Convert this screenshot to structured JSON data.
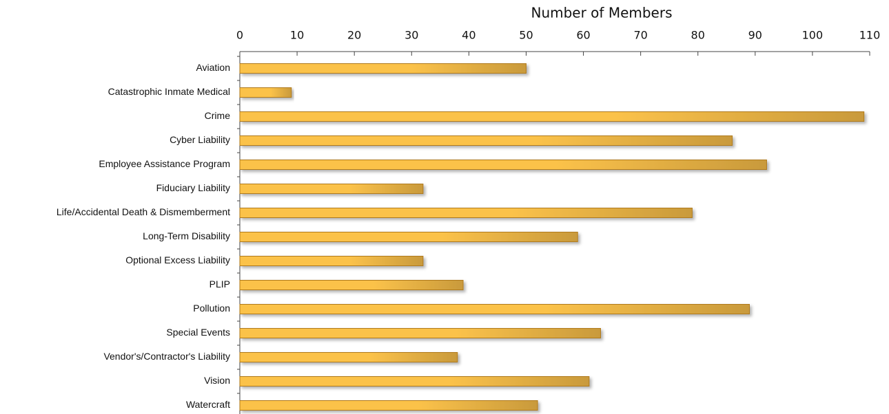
{
  "chart_data": {
    "type": "bar",
    "orientation": "horizontal",
    "xlabel": "Number of Members",
    "categories": [
      "Aviation",
      "Catastrophic Inmate Medical",
      "Crime",
      "Cyber Liability",
      "Employee Assistance Program",
      "Fiduciary Liability",
      "Life/Accidental Death & Dismemberment",
      "Long-Term Disability",
      "Optional Excess Liability",
      "PLIP",
      "Pollution",
      "Special Events",
      "Vendor's/Contractor's Liability",
      "Vision",
      "Watercraft"
    ],
    "values": [
      50,
      9,
      109,
      86,
      92,
      32,
      79,
      59,
      32,
      39,
      89,
      63,
      38,
      61,
      52
    ],
    "color": "#fbc24a",
    "xlim": [
      0,
      110
    ],
    "xticks": [
      0,
      10,
      20,
      30,
      40,
      50,
      60,
      70,
      80,
      90,
      100,
      110
    ],
    "grid": false
  }
}
